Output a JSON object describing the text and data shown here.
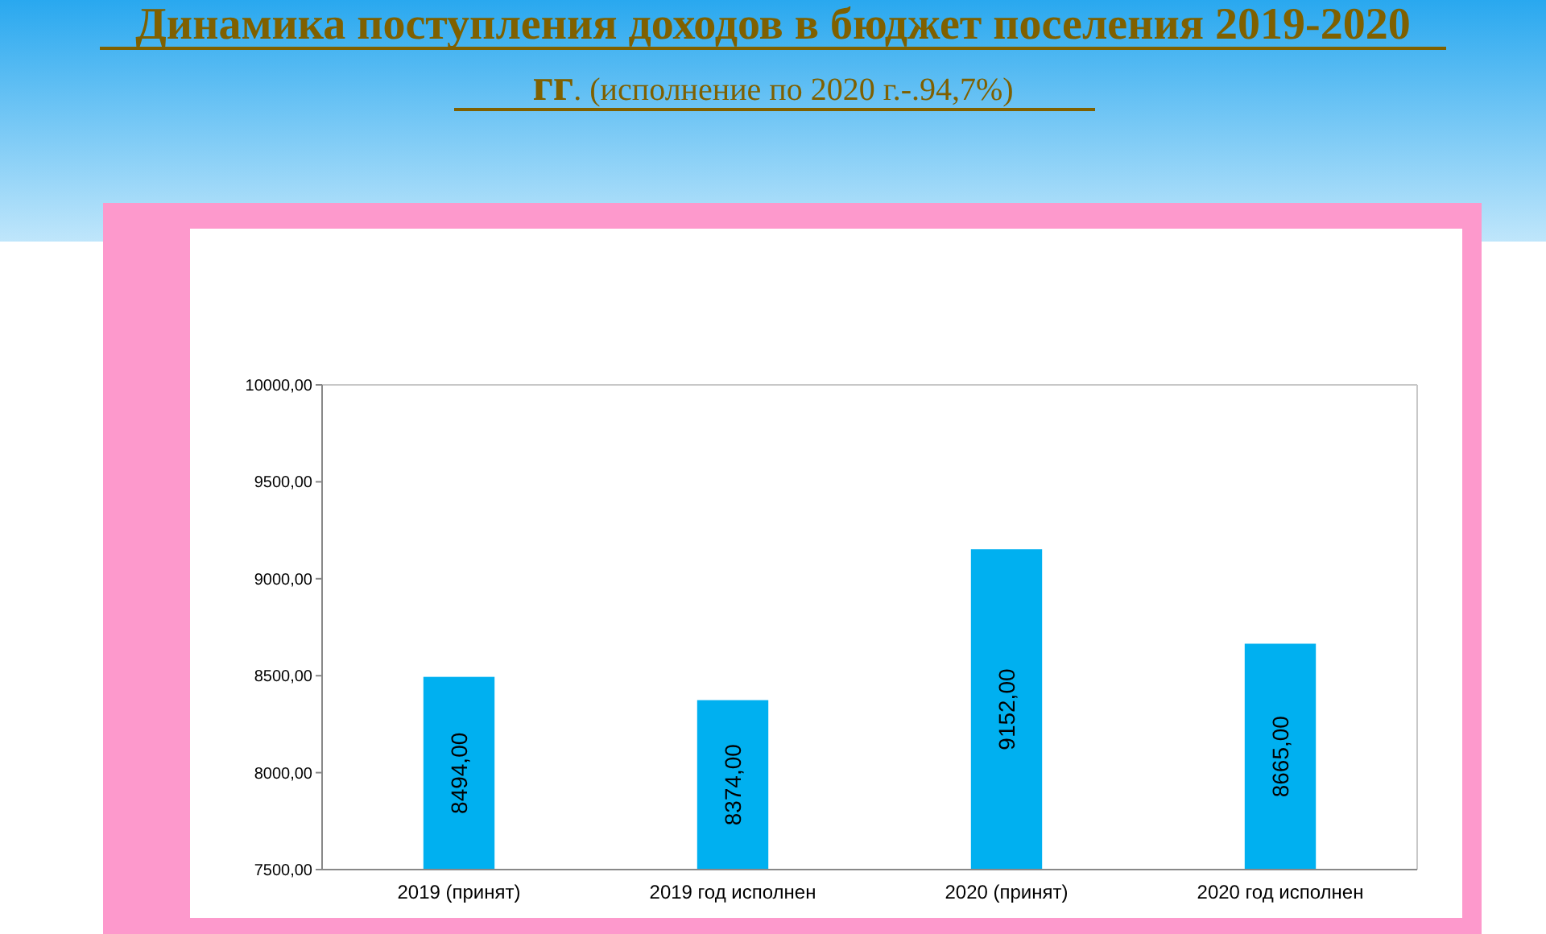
{
  "chart_data": {
    "type": "bar",
    "title": "Динамика поступления доходов в бюджет поселения 2019-2020 гг",
    "subtitle": ". (исполнение  по 2020 г.-.94,7%)",
    "categories": [
      "2019 (принят)",
      "2019 год исполнен",
      "2020 (принят)",
      "2020 год исполнен"
    ],
    "values": [
      8494,
      8374,
      9152,
      8665
    ],
    "color": "#00b0f0",
    "ylim": [
      7500,
      10000
    ],
    "yticks": [
      {
        "value": 7500,
        "label": "7500,00"
      },
      {
        "value": 8000,
        "label": "8000,00"
      },
      {
        "value": 8500,
        "label": "8500,00"
      },
      {
        "value": 9000,
        "label": "9000,00"
      },
      {
        "value": 9500,
        "label": "9500,00"
      },
      {
        "value": 10000,
        "label": "10000,00"
      }
    ],
    "value_labels": [
      "8494,00",
      "8374,00",
      "9152,00",
      "8665,00"
    ],
    "grid": false
  }
}
